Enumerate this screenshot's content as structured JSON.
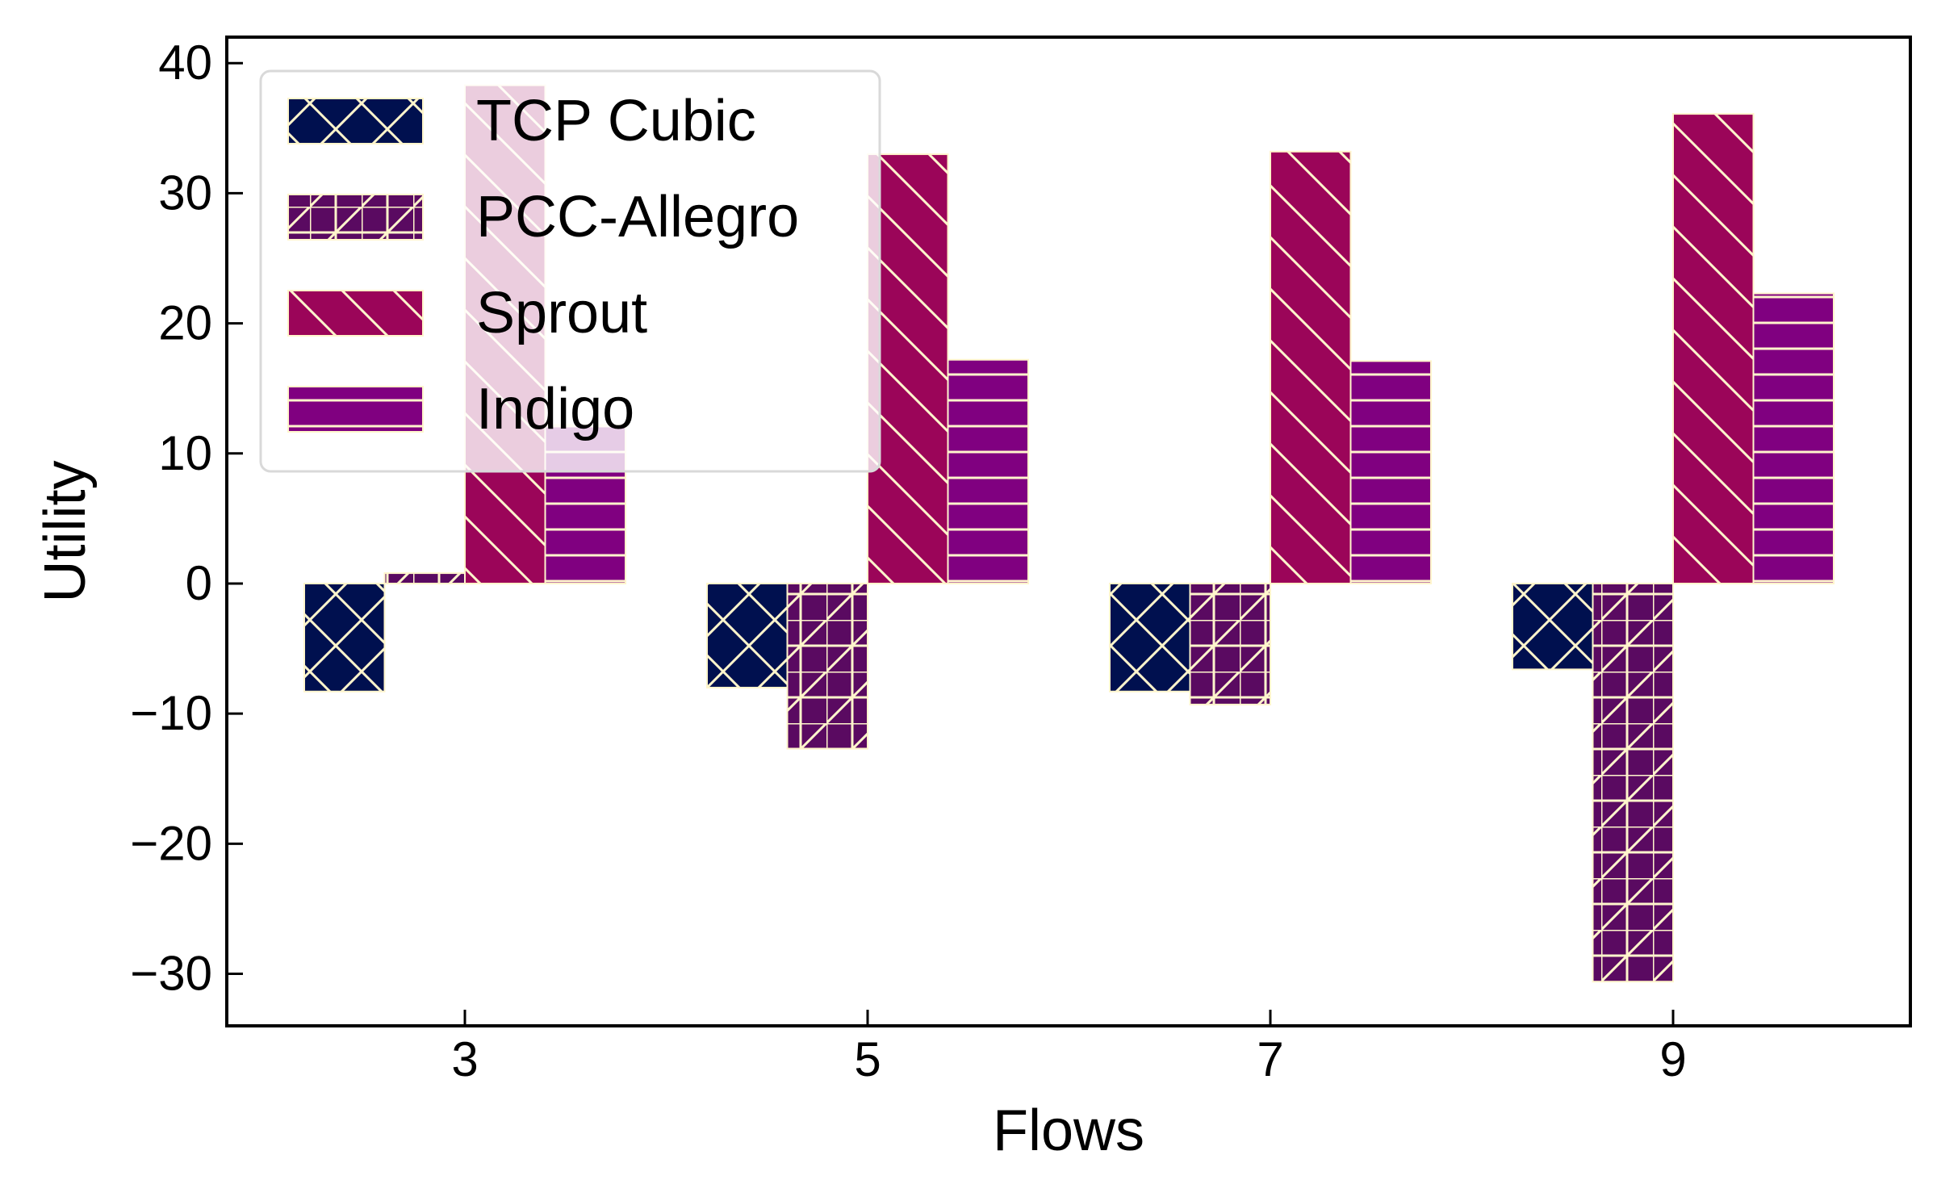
{
  "chart_data": {
    "type": "bar",
    "xlabel": "Flows",
    "ylabel": "Utility",
    "categories": [
      "3",
      "5",
      "7",
      "9"
    ],
    "ylim": [
      -34,
      42
    ],
    "yticks": [
      40,
      30,
      20,
      10,
      0,
      -10,
      -20,
      -30
    ],
    "ytick_labels": [
      "40",
      "30",
      "20",
      "10",
      "0",
      "−10",
      "−20",
      "−30"
    ],
    "grid": false,
    "legend_position": "top-left",
    "hatch_color": "#fff5cc",
    "series": [
      {
        "name": "TCP Cubic",
        "values": [
          -8.3,
          -8.0,
          -8.3,
          -6.6
        ],
        "color": "#00104f",
        "hatch": "x"
      },
      {
        "name": "PCC-Allegro",
        "values": [
          0.8,
          -12.7,
          -9.3,
          -30.6
        ],
        "color": "#5a0a61",
        "hatch": "grid-diag"
      },
      {
        "name": "Sprout",
        "values": [
          38.3,
          33.0,
          33.2,
          36.1
        ],
        "color": "#9b0559",
        "hatch": "backslash"
      },
      {
        "name": "Indigo",
        "values": [
          12.2,
          17.2,
          17.1,
          22.3
        ],
        "color": "#800080",
        "hatch": "horizontal"
      }
    ]
  }
}
